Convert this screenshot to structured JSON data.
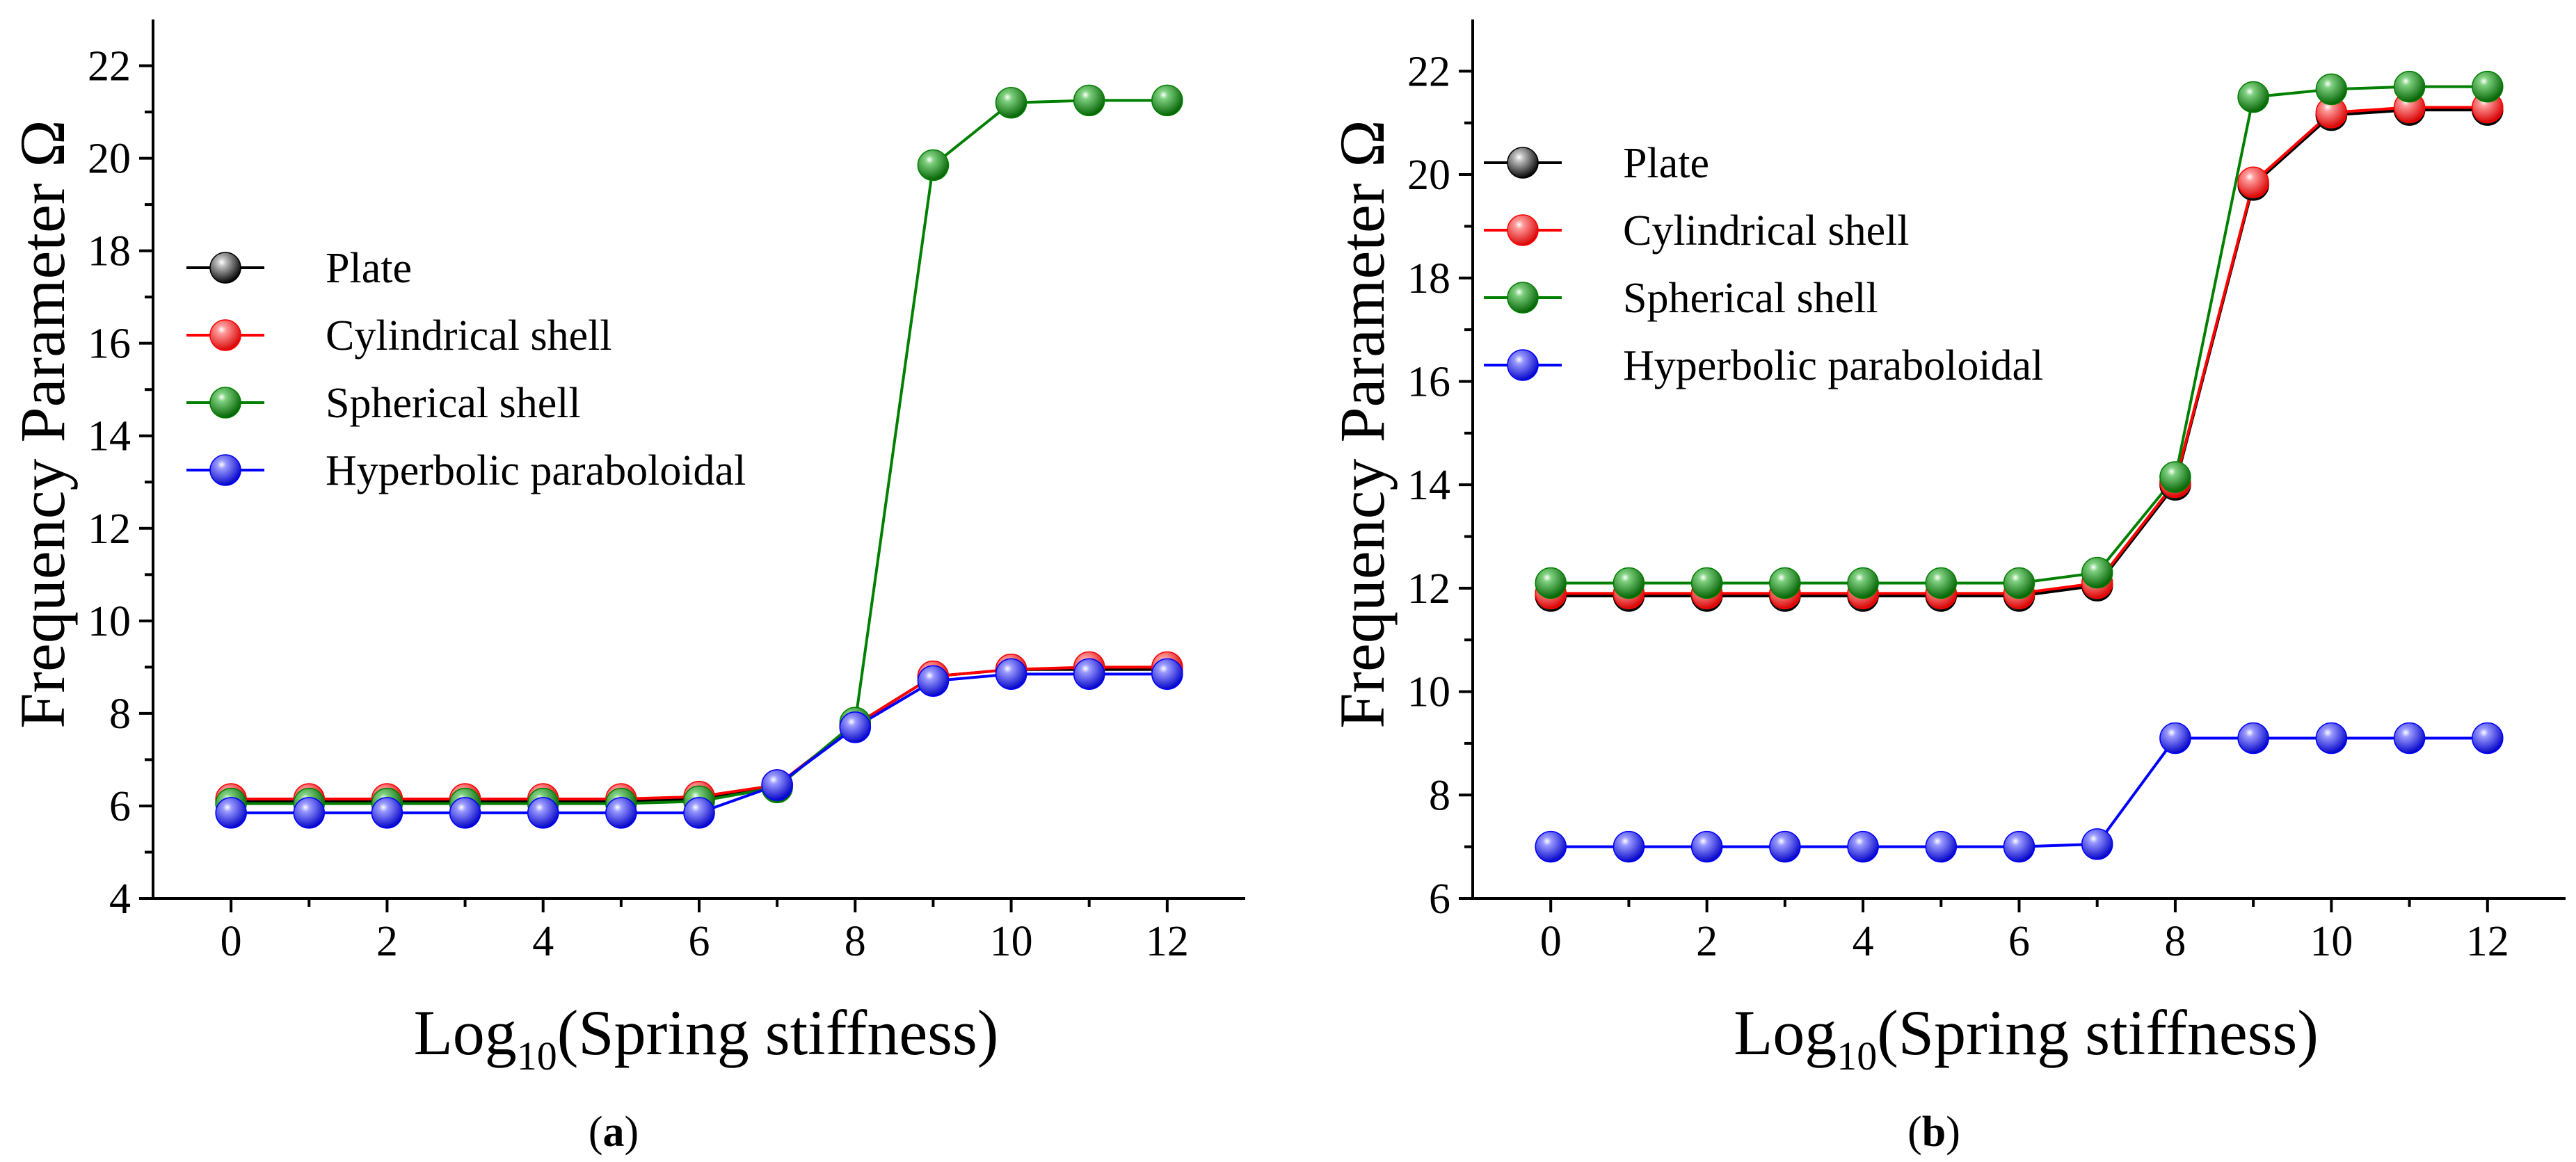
{
  "chart_data": [
    {
      "type": "line",
      "caption": "(a)",
      "caption_parts": [
        "(",
        "a",
        ")"
      ],
      "xlabel": "Log10(Spring stiffness)",
      "xlabel_parts": [
        "Log",
        "10",
        "(Spring stiffness)"
      ],
      "ylabel": "Frequency Parameter Ω",
      "xlim": [
        -1,
        13
      ],
      "ylim": [
        4,
        23
      ],
      "xticks": [
        "0",
        "2",
        "4",
        "6",
        "8",
        "10",
        "12"
      ],
      "yticks": [
        "4",
        "6",
        "8",
        "10",
        "12",
        "14",
        "16",
        "18",
        "20",
        "22"
      ],
      "x": [
        0,
        1,
        2,
        3,
        4,
        5,
        6,
        7,
        8,
        9,
        10,
        11,
        12
      ],
      "legend_position": "middle-left",
      "series": [
        {
          "name": "Plate",
          "color": "#000000",
          "values": [
            6.1,
            6.1,
            6.1,
            6.1,
            6.1,
            6.1,
            6.15,
            6.45,
            7.75,
            8.8,
            8.95,
            8.95,
            8.95
          ]
        },
        {
          "name": "Cylindrical shell",
          "color": "#ff0000",
          "values": [
            6.15,
            6.15,
            6.15,
            6.15,
            6.15,
            6.15,
            6.2,
            6.45,
            7.75,
            8.8,
            8.95,
            9.0,
            9.0
          ]
        },
        {
          "name": "Spherical shell",
          "color": "#008000",
          "values": [
            6.05,
            6.05,
            6.05,
            6.05,
            6.05,
            6.05,
            6.1,
            6.4,
            7.8,
            19.85,
            21.2,
            21.25,
            21.25
          ]
        },
        {
          "name": "Hyperbolic paraboloidal",
          "color": "#0000ff",
          "values": [
            5.85,
            5.85,
            5.85,
            5.85,
            5.85,
            5.85,
            5.85,
            6.45,
            7.7,
            8.7,
            8.85,
            8.85,
            8.85
          ]
        }
      ]
    },
    {
      "type": "line",
      "caption": "(b)",
      "caption_parts": [
        "(",
        "b",
        ")"
      ],
      "xlabel": "Log10(Spring stiffness)",
      "xlabel_parts": [
        "Log",
        "10",
        "(Spring stiffness)"
      ],
      "ylabel": "Frequency Parameter Ω",
      "xlim": [
        -1,
        13
      ],
      "ylim": [
        6,
        23
      ],
      "xticks": [
        "0",
        "2",
        "4",
        "6",
        "8",
        "10",
        "12"
      ],
      "yticks": [
        "6",
        "8",
        "10",
        "12",
        "14",
        "16",
        "18",
        "20",
        "22"
      ],
      "x": [
        0,
        1,
        2,
        3,
        4,
        5,
        6,
        7,
        8,
        9,
        10,
        11,
        12
      ],
      "legend_position": "top-left",
      "series": [
        {
          "name": "Plate",
          "color": "#000000",
          "values": [
            11.85,
            11.85,
            11.85,
            11.85,
            11.85,
            11.85,
            11.85,
            12.05,
            14.0,
            19.8,
            21.15,
            21.25,
            21.25
          ]
        },
        {
          "name": "Cylindrical shell",
          "color": "#ff0000",
          "values": [
            11.9,
            11.9,
            11.9,
            11.9,
            11.9,
            11.9,
            11.9,
            12.1,
            14.05,
            19.85,
            21.2,
            21.3,
            21.3
          ]
        },
        {
          "name": "Spherical shell",
          "color": "#008000",
          "values": [
            12.1,
            12.1,
            12.1,
            12.1,
            12.1,
            12.1,
            12.1,
            12.3,
            14.15,
            21.5,
            21.65,
            21.7,
            21.7
          ]
        },
        {
          "name": "Hyperbolic paraboloidal",
          "color": "#0000ff",
          "values": [
            7.0,
            7.0,
            7.0,
            7.0,
            7.0,
            7.0,
            7.0,
            7.05,
            9.1,
            9.1,
            9.1,
            9.1,
            9.1
          ]
        }
      ]
    }
  ]
}
